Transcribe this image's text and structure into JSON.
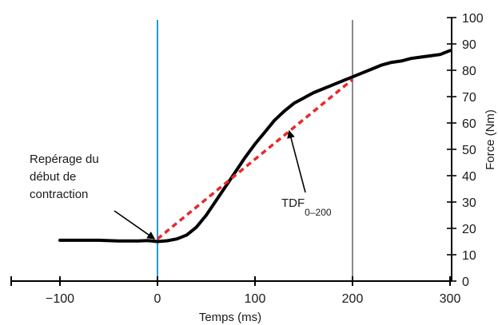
{
  "chart_data": {
    "type": "line",
    "xlabel": "Temps (ms)",
    "ylabel": "Force (Nm)",
    "xlim": [
      -150,
      300
    ],
    "ylim": [
      0,
      100
    ],
    "xticks": [
      -100,
      0,
      100,
      200,
      300
    ],
    "yticks": [
      0,
      10,
      20,
      30,
      40,
      50,
      60,
      70,
      80,
      90,
      100
    ],
    "grid": false,
    "series": [
      {
        "style": "solid",
        "color": "#000000",
        "x": [
          -100,
          -80,
          -60,
          -40,
          -20,
          -10,
          0,
          10,
          20,
          30,
          40,
          50,
          60,
          70,
          80,
          90,
          100,
          110,
          120,
          130,
          140,
          150,
          160,
          170,
          180,
          190,
          200,
          210,
          220,
          230,
          240,
          250,
          260,
          270,
          280,
          290,
          300
        ],
        "y": [
          15.5,
          15.5,
          15.5,
          15.2,
          15.2,
          15.4,
          15.0,
          15.3,
          16.0,
          17.5,
          20.5,
          25.0,
          30.5,
          36.0,
          41.5,
          47.0,
          52.0,
          56.5,
          61.0,
          64.5,
          67.5,
          69.5,
          71.5,
          73.0,
          74.5,
          76.0,
          77.5,
          79.0,
          80.5,
          82.0,
          83.0,
          83.5,
          84.5,
          85.0,
          85.5,
          86.0,
          87.5
        ]
      },
      {
        "style": "dashed",
        "color": "#e8282b",
        "x": [
          0,
          200
        ],
        "y": [
          16.0,
          76.5
        ]
      }
    ],
    "vlines": [
      {
        "x": 0,
        "color": "#1b9fd6"
      },
      {
        "x": 200,
        "color": "#8a8a8a"
      }
    ],
    "annotations": {
      "onset": {
        "lines": [
          "Repérage du",
          "début de",
          "contraction"
        ],
        "target": [
          -3,
          16
        ]
      },
      "rfd": {
        "text": "TDF",
        "subscript": "0–200",
        "target": [
          135,
          57
        ]
      }
    }
  }
}
